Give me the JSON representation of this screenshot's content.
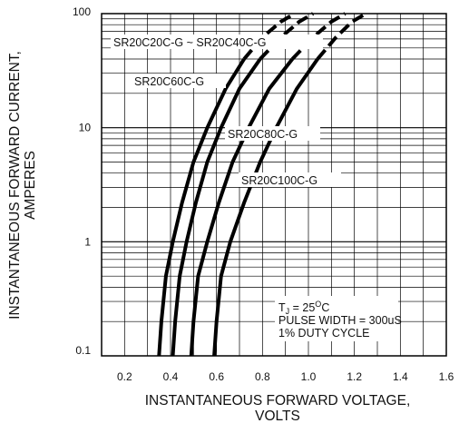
{
  "chart_data": {
    "type": "line",
    "xlabel_line1": "INSTANTANEOUS FORWARD VOLTAGE,",
    "xlabel_line2": "VOLTS",
    "ylabel_line1": "INSTANTANEOUS FORWARD CURRENT,",
    "ylabel_line2": "AMPERES",
    "x_scale": "linear",
    "y_scale": "log",
    "xlim": [
      0.1,
      1.6
    ],
    "ylim": [
      0.1,
      100
    ],
    "grid": true,
    "x_ticks": [
      "0.2",
      "0.4",
      "0.6",
      "0.8",
      "1.0",
      "1.2",
      "1.4",
      "1.6"
    ],
    "y_ticks": [
      "0.1",
      "1",
      "10",
      "100"
    ],
    "series": [
      {
        "name": "SR20C20C-G ~ SR20C40C-G",
        "x": [
          0.35,
          0.36,
          0.38,
          0.41,
          0.45,
          0.5,
          0.56,
          0.64,
          0.72,
          0.8,
          0.88,
          0.94
        ],
        "y": [
          0.1,
          0.2,
          0.5,
          1,
          2.2,
          5,
          10,
          22,
          40,
          62,
          85,
          100
        ]
      },
      {
        "name": "SR20C60C-G",
        "x": [
          0.41,
          0.42,
          0.44,
          0.47,
          0.51,
          0.56,
          0.62,
          0.7,
          0.79,
          0.88,
          0.96,
          1.02
        ],
        "y": [
          0.1,
          0.2,
          0.5,
          1,
          2.2,
          5,
          10,
          22,
          40,
          62,
          85,
          100
        ]
      },
      {
        "name": "SR20C80C-G",
        "x": [
          0.49,
          0.5,
          0.52,
          0.56,
          0.61,
          0.67,
          0.74,
          0.83,
          0.93,
          1.02,
          1.1,
          1.16
        ],
        "y": [
          0.1,
          0.2,
          0.5,
          1,
          2.2,
          5,
          10,
          22,
          40,
          62,
          85,
          100
        ]
      },
      {
        "name": "SR20C100C-G",
        "x": [
          0.59,
          0.6,
          0.62,
          0.66,
          0.72,
          0.79,
          0.86,
          0.95,
          1.04,
          1.12,
          1.19,
          1.25
        ],
        "y": [
          0.1,
          0.2,
          0.5,
          1,
          2.2,
          5,
          10,
          22,
          40,
          62,
          85,
          100
        ]
      }
    ],
    "dashed_above": 40,
    "annotation": {
      "tj_prefix": "T",
      "tj_sub": "J",
      "tj_value": " = 25",
      "tj_sup": "O",
      "tj_unit": "C",
      "line2": "PULSE WIDTH = 300uS",
      "line3": "1% DUTY CYCLE"
    }
  }
}
